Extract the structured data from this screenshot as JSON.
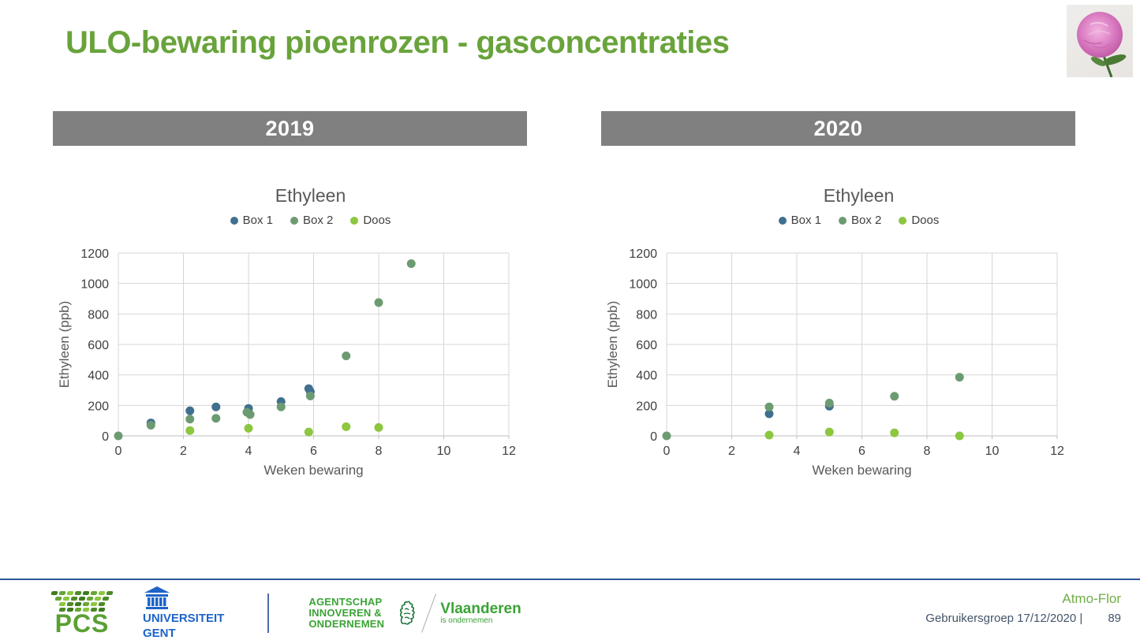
{
  "slide": {
    "title": "ULO-bewaring pioenrozen - gasconcentraties",
    "panels": [
      {
        "year": "2019"
      },
      {
        "year": "2020"
      }
    ]
  },
  "colors": {
    "title_green": "#69A33B",
    "year_bar_gray": "#808080",
    "box1": "#40708F",
    "box2": "#6D9B71",
    "doos": "#8DC63F",
    "grid": "#D6D6D6",
    "axis_line": "#BFBFBF",
    "tick_text": "#404040",
    "axis_title_text": "#595959",
    "footer_rule_blue": "#2E5597",
    "ugent_blue": "#1E64C8",
    "pcs_green": "#5BA033",
    "vlaio_green": "#3AA335",
    "footer_slate": "#44546A",
    "project_green": "#70AD47"
  },
  "chart_data": [
    {
      "type": "scatter",
      "panel": "2019",
      "title": "Ethyleen",
      "xlabel": "Weken bewaring",
      "ylabel": "Ethyleen (ppb)",
      "xlim": [
        0,
        12
      ],
      "ylim": [
        0,
        1200
      ],
      "xticks": [
        0,
        2,
        4,
        6,
        8,
        10,
        12
      ],
      "yticks": [
        0,
        200,
        400,
        600,
        800,
        1000,
        1200
      ],
      "grid": true,
      "legend_position": "top-center",
      "legend": [
        "Box 1",
        "Box 2",
        "Doos"
      ],
      "series": [
        {
          "name": "Box 1",
          "color": "#40708F",
          "points": [
            [
              1,
              85
            ],
            [
              2.2,
              165
            ],
            [
              3,
              190
            ],
            [
              4,
              180
            ],
            [
              5,
              225
            ],
            [
              5.85,
              310
            ],
            [
              5.9,
              290
            ]
          ]
        },
        {
          "name": "Box 2",
          "color": "#6D9B71",
          "points": [
            [
              0,
              0
            ],
            [
              1,
              70
            ],
            [
              2.2,
              110
            ],
            [
              3,
              115
            ],
            [
              3.95,
              155
            ],
            [
              4.05,
              140
            ],
            [
              5,
              190
            ],
            [
              5.9,
              262
            ],
            [
              7,
              525
            ],
            [
              8,
              875
            ],
            [
              9,
              1130
            ]
          ]
        },
        {
          "name": "Doos",
          "color": "#8DC63F",
          "points": [
            [
              2.2,
              35
            ],
            [
              4,
              50
            ],
            [
              5.85,
              25
            ],
            [
              7,
              60
            ],
            [
              8,
              55
            ]
          ]
        }
      ]
    },
    {
      "type": "scatter",
      "panel": "2020",
      "title": "Ethyleen",
      "xlabel": "Weken bewaring",
      "ylabel": "Ethyleen (ppb)",
      "xlim": [
        0,
        12
      ],
      "ylim": [
        0,
        1200
      ],
      "xticks": [
        0,
        2,
        4,
        6,
        8,
        10,
        12
      ],
      "yticks": [
        0,
        200,
        400,
        600,
        800,
        1000,
        1200
      ],
      "grid": true,
      "legend_position": "top-center",
      "legend": [
        "Box 1",
        "Box 2",
        "Doos"
      ],
      "series": [
        {
          "name": "Box 1",
          "color": "#40708F",
          "points": [
            [
              3.15,
              145
            ],
            [
              5,
              195
            ]
          ]
        },
        {
          "name": "Box 2",
          "color": "#6D9B71",
          "points": [
            [
              0,
              0
            ],
            [
              3.15,
              190
            ],
            [
              5,
              215
            ],
            [
              7,
              260
            ],
            [
              9,
              385
            ]
          ]
        },
        {
          "name": "Doos",
          "color": "#8DC63F",
          "points": [
            [
              3.15,
              5
            ],
            [
              5,
              25
            ],
            [
              7,
              20
            ],
            [
              9,
              0
            ]
          ]
        }
      ]
    }
  ],
  "footer": {
    "pcs_label": "PCS",
    "ugent_lines": [
      "UNIVERSITEIT",
      "GENT"
    ],
    "vlaio_lines": [
      "AGENTSCHAP",
      "INNOVEREN &",
      "ONDERNEMEN"
    ],
    "vlaanderen_label": "Vlaanderen",
    "vlaanderen_sub": "is ondernemen",
    "project": "Atmo-Flor",
    "note": "Gebruikersgroep 17/12/2020 |",
    "page": "89"
  }
}
